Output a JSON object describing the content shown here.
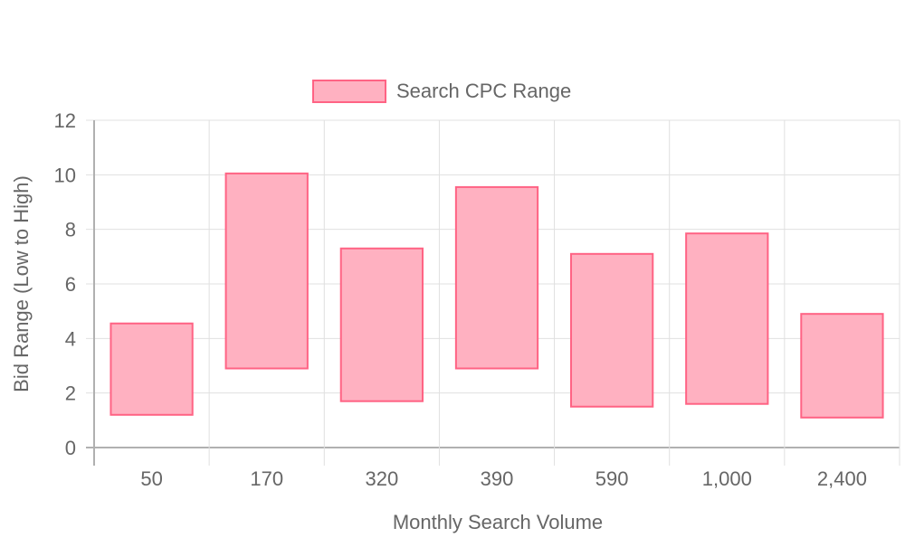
{
  "chart_data": {
    "type": "bar",
    "subtype": "floating-range",
    "title": "",
    "xlabel": "Monthly Search Volume",
    "ylabel": "Bid Range (Low to High)",
    "categories": [
      "50",
      "170",
      "320",
      "390",
      "590",
      "1,000",
      "2,400"
    ],
    "series": [
      {
        "name": "Search CPC Range",
        "color_fill": "#ffb1c1",
        "color_border": "#ff6384",
        "ranges": [
          [
            1.2,
            4.55
          ],
          [
            2.9,
            10.05
          ],
          [
            1.7,
            7.3
          ],
          [
            2.9,
            9.55
          ],
          [
            1.5,
            7.1
          ],
          [
            1.6,
            7.85
          ],
          [
            1.1,
            4.9
          ]
        ]
      }
    ],
    "ylim": [
      0,
      12
    ],
    "yticks": [
      0,
      2,
      4,
      6,
      8,
      10,
      12
    ],
    "grid": true,
    "legend_position": "top-center"
  }
}
